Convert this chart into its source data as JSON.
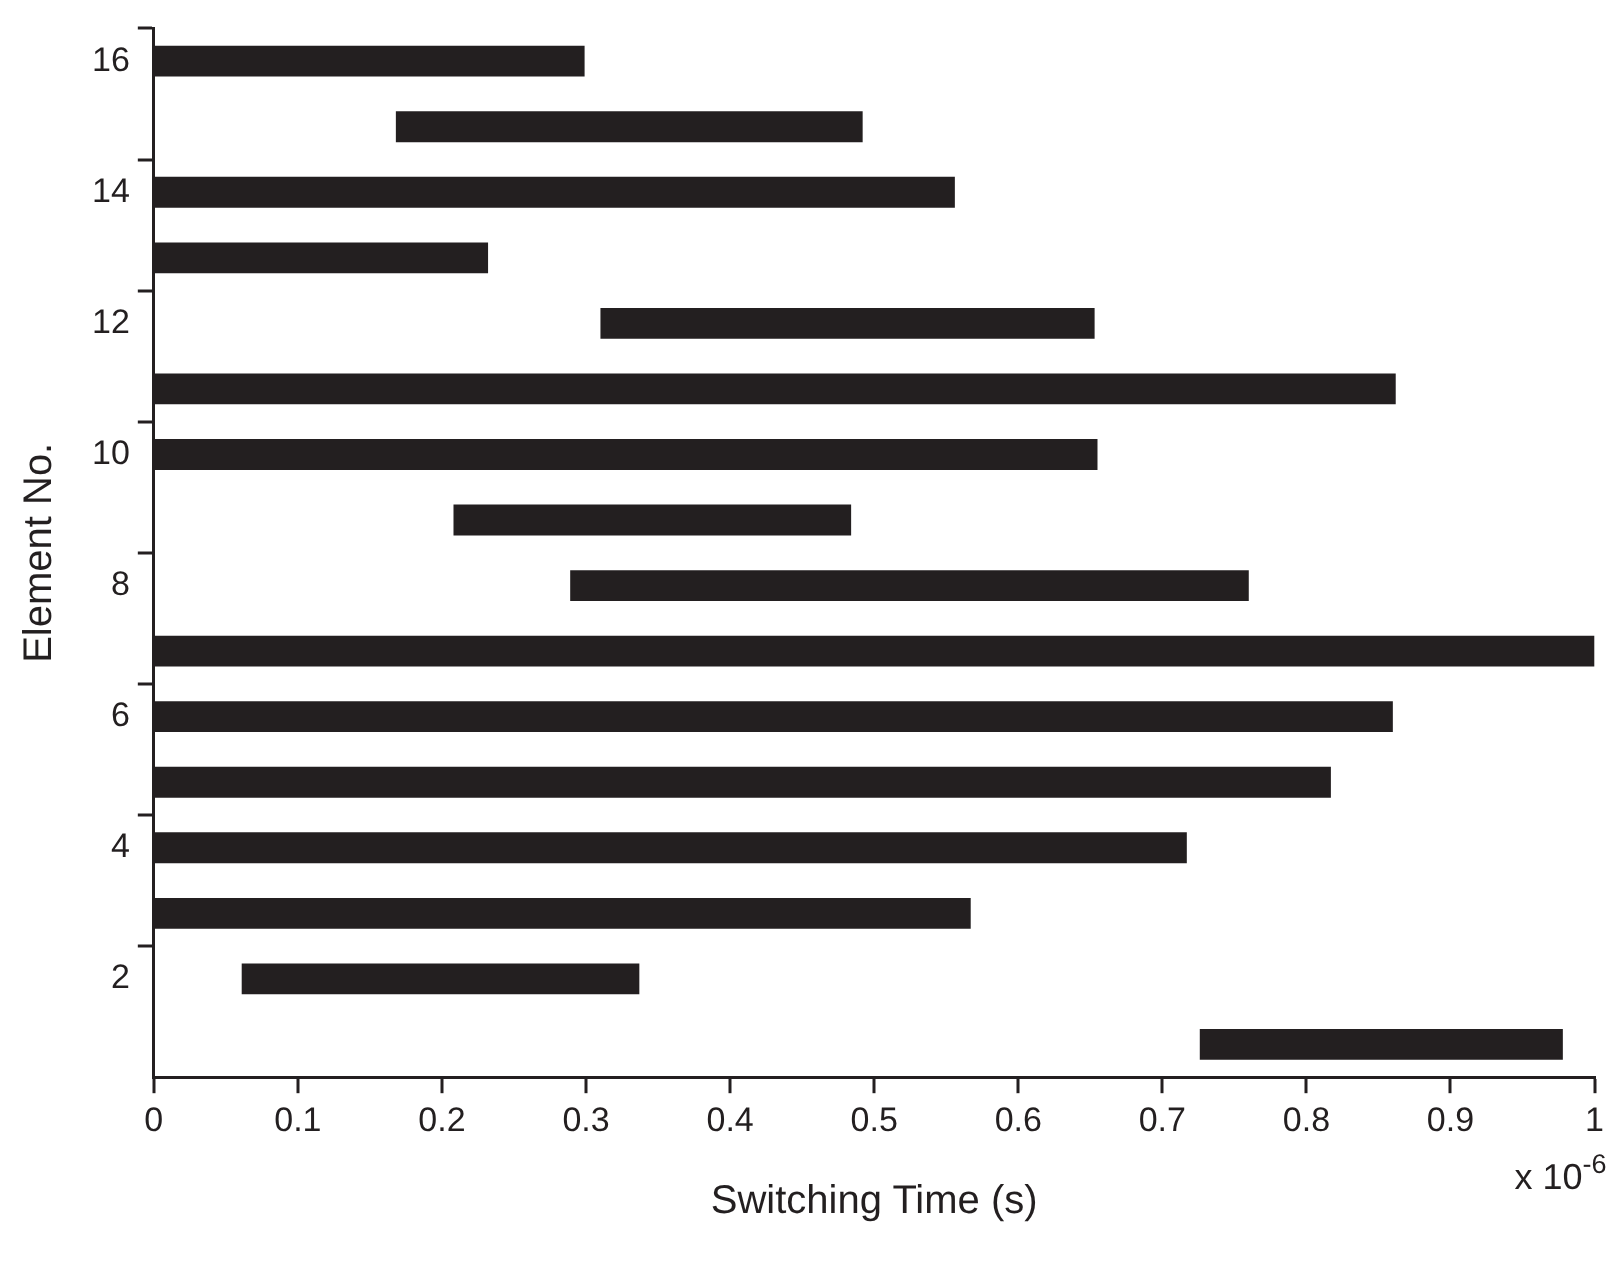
{
  "chart_data": {
    "type": "bar",
    "orientation": "horizontal",
    "xlabel": "Switching Time (s)",
    "ylabel": "Element No.",
    "annotations": [
      "x 10$^{-6}$"
    ],
    "categories": [
      "16",
      null,
      "14",
      null,
      "12",
      null,
      "10",
      null,
      "8",
      null,
      "6",
      null,
      "4",
      null,
      "2",
      null
    ],
    "base": [
      0,
      0.168,
      0,
      0,
      0.31,
      0,
      0,
      0.208,
      0.289,
      0,
      0,
      0,
      0,
      0,
      0.061,
      0.726
    ],
    "values": [
      0.299,
      0.324,
      0.556,
      0.232,
      0.343,
      0.862,
      0.655,
      0.276,
      0.471,
      1.0,
      0.86,
      0.817,
      0.717,
      0.567,
      0.276,
      0.252
    ],
    "color": "#231f20",
    "xlim": [
      0,
      1
    ],
    "xticks": [
      0,
      0.1,
      0.2,
      0.3,
      0.4,
      0.5,
      0.6,
      0.7,
      0.8,
      0.9,
      1
    ],
    "grid": false,
    "legend": false
  }
}
